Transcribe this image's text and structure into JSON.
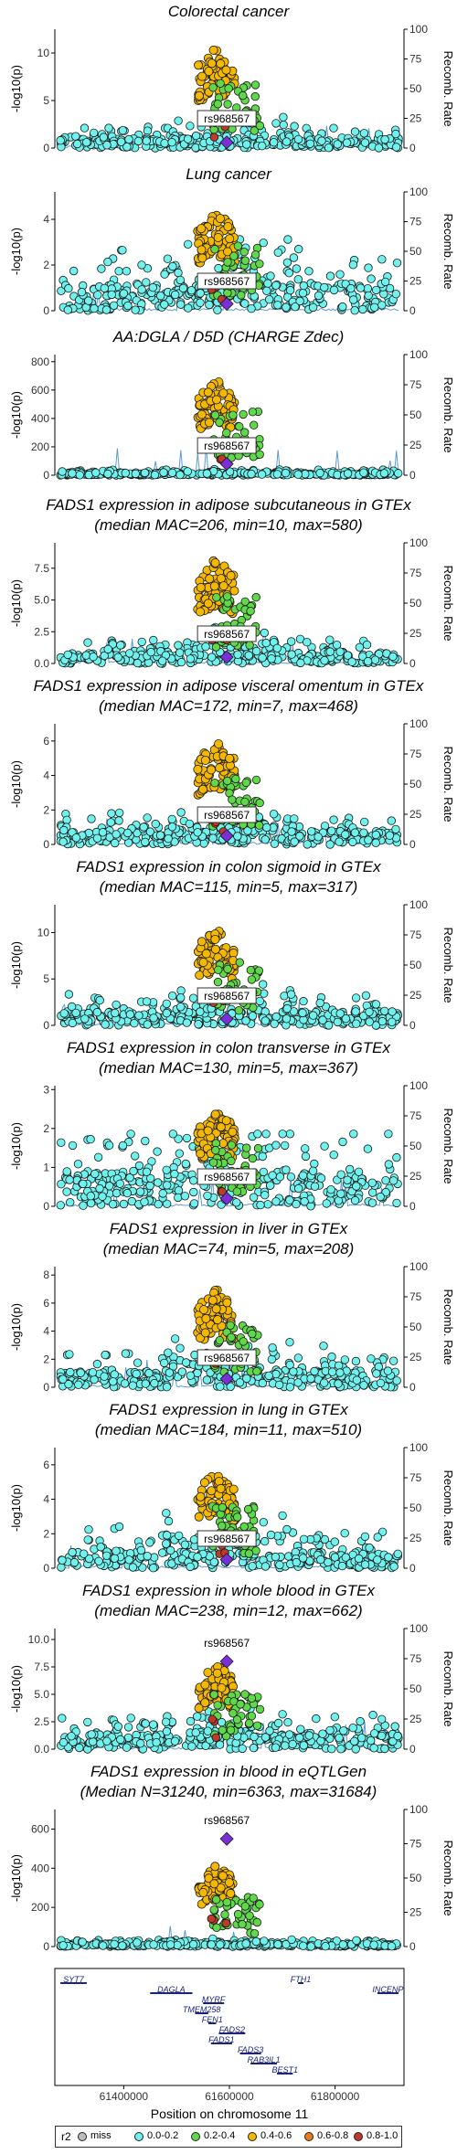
{
  "colors": {
    "miss": "#bdbdbd",
    "r2_0_0.2": "#6ff2ee",
    "r2_0.2_0.4": "#5fd94a",
    "r2_0.4_0.6": "#f5b800",
    "r2_0.6_0.8": "#ee7a1a",
    "r2_0.8_1.0": "#c0392b",
    "lead": "#7b2fd6",
    "recomb": "#5b9bd5"
  },
  "common": {
    "ylabel": "-log10(p)",
    "y2label": "Recomb. Rate",
    "recomb_ticks": [
      0,
      25,
      50,
      75,
      100
    ],
    "lead_snp": "rs968567",
    "x_range": [
      61280000,
      61920000
    ]
  },
  "chart_data": [
    {
      "type": "scatter",
      "title": "Colorectal cancer",
      "subtitle": "",
      "yticks": [
        0,
        5,
        10
      ],
      "ylim": [
        0,
        12.5
      ],
      "peak": 10.6,
      "lead_value": 0.6,
      "label_pos": "center",
      "background": 1.0
    },
    {
      "type": "scatter",
      "title": "Lung cancer",
      "subtitle": "",
      "yticks": [
        0,
        2,
        4
      ],
      "ylim": [
        0,
        5.2
      ],
      "peak": 4.4,
      "lead_value": 0.3,
      "label_pos": "center",
      "background": 1.2
    },
    {
      "type": "scatter",
      "title": "AA:DGLA / D5D (CHARGE Zdec)",
      "subtitle": "",
      "yticks": [
        0,
        200,
        400,
        600,
        800
      ],
      "ylim": [
        0,
        850
      ],
      "peak": 690,
      "lead_value": 80,
      "label_pos": "center",
      "background": 18
    },
    {
      "type": "scatter",
      "title": "FADS1 expression in adipose subcutaneous in GTEx",
      "subtitle": "(median MAC=206, min=10, max=580)",
      "yticks": [
        0,
        2.5,
        5.0,
        7.5
      ],
      "yticklabels": [
        "0.0",
        "2.5",
        "5.0",
        "7.5"
      ],
      "ylim": [
        0,
        9.5
      ],
      "peak": 8.3,
      "lead_value": 0.5,
      "label_pos": "center",
      "background": 0.9
    },
    {
      "type": "scatter",
      "title": "FADS1 expression in adipose visceral omentum in GTEx",
      "subtitle": "(median MAC=172, min=7, max=468)",
      "yticks": [
        0,
        2,
        4,
        6
      ],
      "ylim": [
        0,
        7
      ],
      "peak": 6.0,
      "lead_value": 0.5,
      "label_pos": "center",
      "background": 0.8
    },
    {
      "type": "scatter",
      "title": "FADS1 expression in colon sigmoid in GTEx",
      "subtitle": "(median MAC=115, min=5, max=317)",
      "yticks": [
        0,
        5,
        10
      ],
      "ylim": [
        0,
        13
      ],
      "peak": 10.5,
      "lead_value": 0.7,
      "label_pos": "center",
      "background": 1.5
    },
    {
      "type": "scatter",
      "title": "FADS1 expression in colon transverse in GTEx",
      "subtitle": "(median MAC=130, min=5, max=367)",
      "yticks": [
        0,
        1,
        2,
        3
      ],
      "ylim": [
        0,
        3.1
      ],
      "peak": 2.5,
      "lead_value": 0.2,
      "label_pos": "center",
      "background": 0.9
    },
    {
      "type": "scatter",
      "title": "FADS1 expression in liver in GTEx",
      "subtitle": "(median MAC=74, min=5, max=208)",
      "yticks": [
        0,
        2,
        4,
        6,
        8
      ],
      "ylim": [
        0,
        8.6
      ],
      "peak": 7.0,
      "lead_value": 0.6,
      "label_pos": "center",
      "background": 1.2
    },
    {
      "type": "scatter",
      "title": "FADS1 expression in lung in GTEx",
      "subtitle": "(median MAC=184, min=11, max=510)",
      "yticks": [
        0,
        2,
        4,
        6
      ],
      "ylim": [
        0,
        7
      ],
      "peak": 5.6,
      "lead_value": 0.5,
      "label_pos": "center",
      "background": 1.0
    },
    {
      "type": "scatter",
      "title": "FADS1 expression in whole blood in GTEx",
      "subtitle": "(median MAC=238, min=12, max=662)",
      "yticks": [
        0,
        2.5,
        5.0,
        7.5,
        10.0
      ],
      "yticklabels": [
        "0.0",
        "2.5",
        "5.0",
        "7.5",
        "10.0"
      ],
      "ylim": [
        0,
        11
      ],
      "peak": 7.8,
      "lead_value": 8.0,
      "label_pos": "top",
      "background": 1.4
    },
    {
      "type": "scatter",
      "title": "FADS1 expression in blood in eQTLGen",
      "subtitle": "(Median N=31240, min=6363, max=31684)",
      "yticks": [
        0,
        200,
        400,
        600
      ],
      "ylim": [
        0,
        700
      ],
      "peak": 420,
      "lead_value": 550,
      "label_pos": "top",
      "background": 15
    }
  ],
  "genes": {
    "xlabel": "Position on chromosome 11",
    "xticks": [
      61400000,
      61600000,
      61800000
    ],
    "xticklabels": [
      "61400000",
      "61600000",
      "61800000"
    ],
    "items": [
      {
        "name": "SYT7",
        "start": 61280000,
        "end": 61330000,
        "row": 0
      },
      {
        "name": "DAGLA",
        "start": 61450000,
        "end": 61530000,
        "row": 1
      },
      {
        "name": "MYRF",
        "start": 61550000,
        "end": 61590000,
        "row": 2
      },
      {
        "name": "TMEM258",
        "start": 61535000,
        "end": 61560000,
        "row": 3
      },
      {
        "name": "FEN1",
        "start": 61560000,
        "end": 61575000,
        "row": 4
      },
      {
        "name": "FADS2",
        "start": 61580000,
        "end": 61630000,
        "row": 5
      },
      {
        "name": "FADS1",
        "start": 61565000,
        "end": 61605000,
        "row": 6
      },
      {
        "name": "FADS3",
        "start": 61620000,
        "end": 61660000,
        "row": 7
      },
      {
        "name": "RAB3IL1",
        "start": 61640000,
        "end": 61690000,
        "row": 8
      },
      {
        "name": "BEST1",
        "start": 61690000,
        "end": 61720000,
        "row": 9
      },
      {
        "name": "FTH1",
        "start": 61730000,
        "end": 61740000,
        "row": 0
      },
      {
        "name": "INCENP",
        "start": 61880000,
        "end": 61920000,
        "row": 1
      }
    ]
  },
  "legend": {
    "title": "r2",
    "items": [
      "miss",
      "0.0-0.2",
      "0.2-0.4",
      "0.4-0.6",
      "0.6-0.8",
      "0.8-1.0"
    ]
  }
}
